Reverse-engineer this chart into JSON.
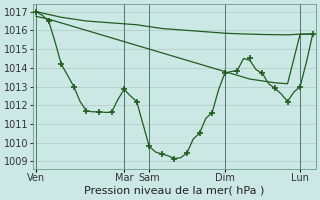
{
  "background_color": "#cce8e4",
  "grid_color": "#b0c8c4",
  "line_color": "#1f5c1f",
  "xlabel": "Pression niveau de la mer( hPa )",
  "xlabel_fontsize": 8,
  "tick_fontsize": 7,
  "ylim": [
    1008.6,
    1017.4
  ],
  "yticks": [
    1009,
    1010,
    1011,
    1012,
    1013,
    1014,
    1015,
    1016,
    1017
  ],
  "x_day_labels": [
    "Ven",
    "Mar",
    "Sam",
    "Dim",
    "Lun"
  ],
  "x_day_positions": [
    0,
    14,
    18,
    30,
    42
  ],
  "xlim": [
    -0.5,
    44.5
  ],
  "lineA_x": [
    0,
    2,
    4,
    6,
    8,
    10,
    12,
    14,
    16,
    18,
    20,
    22,
    24,
    26,
    28,
    30,
    32,
    34,
    36,
    38,
    40,
    42,
    44
  ],
  "lineA_y": [
    1017.0,
    1016.85,
    1016.7,
    1016.6,
    1016.5,
    1016.45,
    1016.4,
    1016.35,
    1016.3,
    1016.2,
    1016.1,
    1016.05,
    1016.0,
    1015.95,
    1015.9,
    1015.85,
    1015.82,
    1015.8,
    1015.78,
    1015.77,
    1015.76,
    1015.8,
    1015.8
  ],
  "lineB_x": [
    0,
    2,
    4,
    6,
    8,
    10,
    12,
    14,
    16,
    18,
    20,
    22,
    24,
    26,
    28,
    30,
    32,
    34,
    36,
    38,
    40,
    42,
    44
  ],
  "lineB_y": [
    1016.75,
    1016.6,
    1016.4,
    1016.2,
    1016.0,
    1015.8,
    1015.6,
    1015.4,
    1015.2,
    1015.0,
    1014.8,
    1014.6,
    1014.4,
    1014.2,
    1014.0,
    1013.8,
    1013.6,
    1013.4,
    1013.3,
    1013.2,
    1013.15,
    1015.8,
    1015.8
  ],
  "lineC_x": [
    0,
    1,
    2,
    3,
    4,
    5,
    6,
    7,
    8,
    9,
    10,
    11,
    12,
    13,
    14,
    15,
    16,
    17,
    18,
    19,
    20,
    21,
    22,
    23,
    24,
    25,
    26,
    27,
    28,
    29,
    30,
    31,
    32,
    33,
    34,
    35,
    36,
    37,
    38,
    39,
    40,
    41,
    42,
    43,
    44
  ],
  "lineC_y": [
    1017.0,
    1016.8,
    1016.5,
    1015.4,
    1014.2,
    1013.6,
    1013.0,
    1012.2,
    1011.7,
    1011.65,
    1011.65,
    1011.62,
    1011.62,
    1012.3,
    1012.85,
    1012.5,
    1012.2,
    1011.0,
    1009.8,
    1009.5,
    1009.4,
    1009.3,
    1009.15,
    1009.2,
    1009.45,
    1010.2,
    1010.5,
    1011.3,
    1011.6,
    1012.8,
    1013.7,
    1013.8,
    1013.85,
    1014.5,
    1014.4,
    1013.9,
    1013.7,
    1013.15,
    1012.9,
    1012.6,
    1012.2,
    1012.7,
    1013.0,
    1014.3,
    1015.8
  ],
  "lineC_marker_x": [
    0,
    2,
    4,
    6,
    8,
    10,
    12,
    14,
    16,
    18,
    20,
    22,
    24,
    26,
    28,
    30,
    32,
    34,
    36,
    38,
    40,
    42,
    44
  ],
  "lineC_marker_y": [
    1017.0,
    1016.5,
    1014.2,
    1013.0,
    1011.7,
    1011.65,
    1011.62,
    1012.85,
    1012.2,
    1009.8,
    1009.4,
    1009.15,
    1009.45,
    1010.5,
    1011.6,
    1013.7,
    1013.85,
    1014.5,
    1013.7,
    1012.9,
    1012.2,
    1013.0,
    1015.8
  ]
}
